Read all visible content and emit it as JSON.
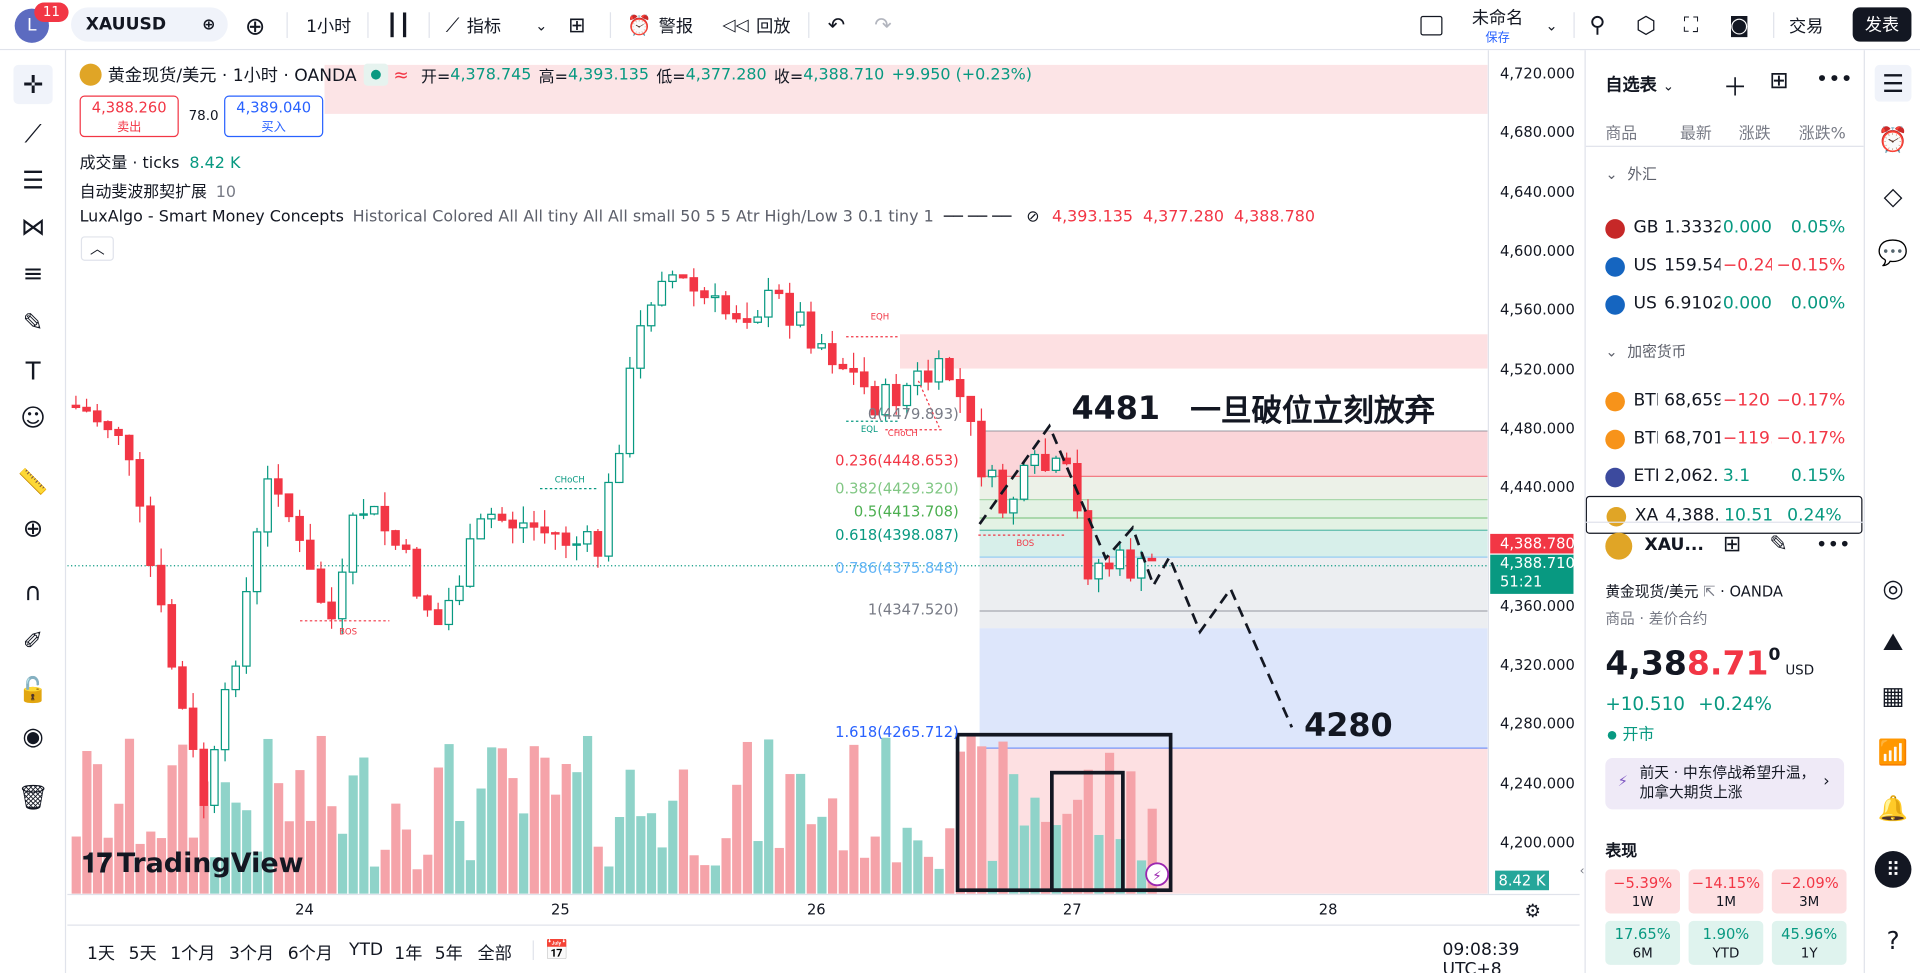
{
  "topbar": {
    "avatar_letter": "L",
    "notif_count": "11",
    "symbol": "XAUUSD",
    "interval": "1小时",
    "indicators": "指标",
    "alert": "警报",
    "replay": "回放",
    "layout_name": "未命名",
    "layout_saved": "保存",
    "trade": "交易",
    "publish": "发表"
  },
  "legend": {
    "symbol_title": "黄金现货/美元 · 1小时 · OANDA",
    "open_label": "开=",
    "open": "4,378.745",
    "high_label": "高=",
    "high": "4,393.135",
    "low_label": "低=",
    "low": "4,377.280",
    "close_label": "收=",
    "close": "4,388.710",
    "change": "+9.950 (+0.23%)",
    "sell_price": "4,388.260",
    "sell_label": "卖出",
    "spread": "78.0",
    "buy_price": "4,389.040",
    "buy_label": "买入",
    "volume_label": "成交量 · ticks",
    "volume_value": "8.42 K",
    "fib_label": "自动斐波那契扩展",
    "fib_value": "10",
    "smc_label": "LuxAlgo - Smart Money Concepts",
    "smc_params": "Historical Colored All All tiny All All small 50 5 5 Atr High/Low 3 0.1 tiny 1",
    "smc_v1": "4,393.135",
    "smc_v2": "4,377.280",
    "smc_v3": "4,388.780"
  },
  "annotations": {
    "price_4481": "4481",
    "note": "一旦破位立刻放弃",
    "price_4280": "4280",
    "eqh": "EQH",
    "eql": "EQL",
    "choch1": "CHoCH",
    "choch2": "CHoCH",
    "bos1": "BOS",
    "bos2": "BOS"
  },
  "fib_levels": [
    {
      "label": "0(4479.893)",
      "color": "#787b86"
    },
    {
      "label": "0.236(4448.653)",
      "color": "#f23645"
    },
    {
      "label": "0.382(4429.320)",
      "color": "#81c784"
    },
    {
      "label": "0.5(4413.708)",
      "color": "#4caf50"
    },
    {
      "label": "0.618(4398.087)",
      "color": "#089981"
    },
    {
      "label": "0.786(4375.848)",
      "color": "#64b5f6"
    },
    {
      "label": "1(4347.520)",
      "color": "#787b86"
    },
    {
      "label": "1.618(4265.712)",
      "color": "#2962ff"
    }
  ],
  "price_axis": {
    "ticks": [
      "4,720.000",
      "4,680.000",
      "4,640.000",
      "4,600.000",
      "4,560.000",
      "4,520.000",
      "4,480.000",
      "4,440.000",
      "4,400.000",
      "4,360.000",
      "4,320.000",
      "4,280.000",
      "4,240.000",
      "4,200.000"
    ],
    "last_price_red": "4,388.780",
    "last_price_green": "4,388.710",
    "countdown": "51:21",
    "volume_tag": "8.42 K"
  },
  "time_axis": {
    "ticks": [
      "24",
      "25",
      "26",
      "27",
      "28"
    ]
  },
  "bottombar": {
    "ranges": [
      "1天",
      "5天",
      "1个月",
      "3个月",
      "6个月",
      "YTD",
      "1年",
      "5年",
      "全部"
    ],
    "clock": "09:08:39 UTC+8"
  },
  "watermark": "TradingView",
  "watchlist": {
    "title": "自选表",
    "cols": [
      "商品",
      "最新",
      "涨跌",
      "涨跌%"
    ],
    "sections": [
      {
        "name": "外汇",
        "rows": [
          {
            "sym": "GB",
            "last": "1.3332",
            "chg": "0.000",
            "pct": "0.05%",
            "color": "#089981"
          },
          {
            "sym": "USI",
            "last": "159.54",
            "chg": "−0.24",
            "pct": "−0.15%",
            "color": "#f23645"
          },
          {
            "sym": "USI",
            "last": "6.9102",
            "chg": "0.000",
            "pct": "0.00%",
            "color": "#089981"
          }
        ]
      },
      {
        "name": "加密货币",
        "rows": [
          {
            "sym": "BTI",
            "last": "68,659",
            "chg": "−120",
            "pct": "−0.17%",
            "color": "#f23645"
          },
          {
            "sym": "BTI",
            "last": "68,701",
            "chg": "−119.",
            "pct": "−0.17%",
            "color": "#f23645"
          },
          {
            "sym": "ETI",
            "last": "2,062.",
            "chg": "3.1",
            "pct": "0.15%",
            "color": "#089981"
          },
          {
            "sym": "XAI",
            "last": "4,388.",
            "chg": "10.51",
            "pct": "0.24%",
            "color": "#089981"
          }
        ]
      }
    ]
  },
  "details": {
    "sym": "XAU...",
    "name": "黄金现货/美元",
    "exchange": "OANDA",
    "type": "商品 · 差价合约",
    "price_main": "4,38",
    "price_red": "8.71",
    "price_sup": "0",
    "currency": "USD",
    "change": "+10.510",
    "change_pct": "+0.24%",
    "market_status": "开市",
    "news": "前天 · 中东停战希望升温，加拿大期货上涨",
    "perf_title": "表现",
    "perf": [
      {
        "v": "−5.39%",
        "p": "1W",
        "neg": true
      },
      {
        "v": "−14.15%",
        "p": "1M",
        "neg": true
      },
      {
        "v": "−2.09%",
        "p": "3M",
        "neg": true
      },
      {
        "v": "17.65%",
        "p": "6M",
        "neg": false
      },
      {
        "v": "1.90%",
        "p": "YTD",
        "neg": false
      },
      {
        "v": "45.96%",
        "p": "1Y",
        "neg": false
      }
    ]
  },
  "colors": {
    "up": "#089981",
    "down": "#f23645",
    "accent": "#2962ff"
  }
}
